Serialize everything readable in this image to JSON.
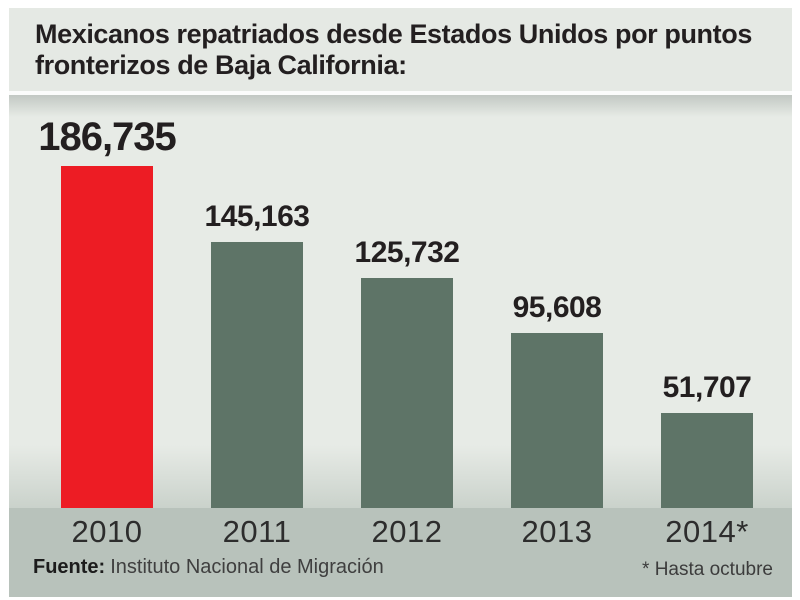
{
  "title": {
    "line1": "Mexicanos repatriados desde Estados Unidos por puntos",
    "line2": "fronterizos de Baja California:"
  },
  "footer": {
    "source_label": "Fuente:",
    "source_text": "Instituto Nacional de Migración",
    "footnote": "* Hasta octubre"
  },
  "colors": {
    "highlight_bar": "#ed1c24",
    "bar": "#5e7467",
    "header_bg": "#e5e9e4",
    "chart_bg": "#e7ebe6",
    "footer_bg": "#b8c2bb",
    "text": "#231f20"
  },
  "chart_data": {
    "type": "bar",
    "title": "Mexicanos repatriados desde Estados Unidos por puntos fronterizos de Baja California:",
    "categories": [
      "2010",
      "2011",
      "2012",
      "2013",
      "2014*"
    ],
    "values": [
      186735,
      145163,
      125732,
      95608,
      51707
    ],
    "value_labels": [
      "186,735",
      "145,163",
      "125,732",
      "95,608",
      "51,707"
    ],
    "bar_colors": [
      "#ed1c24",
      "#5e7467",
      "#5e7467",
      "#5e7467",
      "#5e7467"
    ],
    "xlabel": "",
    "ylabel": "",
    "ylim": [
      0,
      200000
    ],
    "grid": false,
    "legend": "none",
    "annotations": [
      "* Hasta octubre"
    ],
    "source": "Fuente: Instituto Nacional de Migración"
  }
}
